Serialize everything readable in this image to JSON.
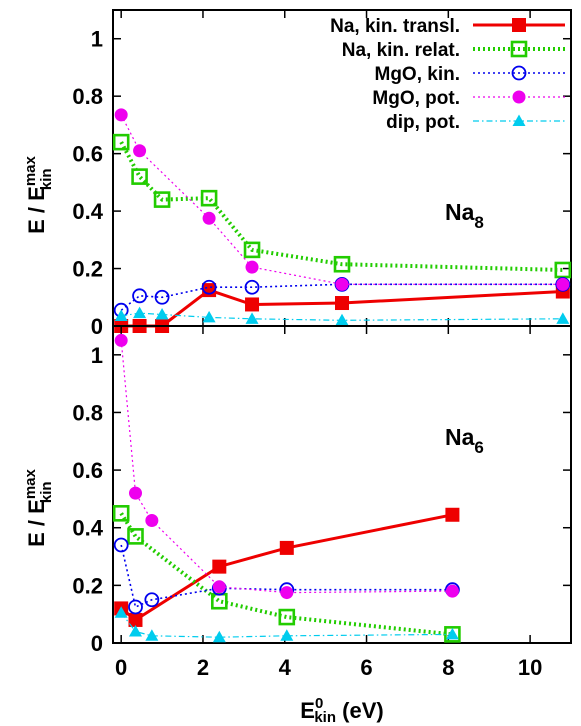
{
  "chart_data": {
    "type": "line",
    "x_axis": {
      "label": "E",
      "label_sup": "0",
      "label_sub": "kin",
      "label_rest": " (eV)",
      "range": [
        -0.2,
        11
      ],
      "ticks": [
        0,
        2,
        4,
        6,
        8,
        10
      ]
    },
    "y_axis": {
      "label": "E / E",
      "label_sup": "max",
      "label_sub": "kin"
    },
    "legend_position": "top-right",
    "legend": [
      {
        "key": "na_transl",
        "label": "Na, kin. transl."
      },
      {
        "key": "na_relat",
        "label": "Na, kin. relat."
      },
      {
        "key": "mgo_kin",
        "label": "MgO, kin."
      },
      {
        "key": "mgo_pot",
        "label": "MgO, pot."
      },
      {
        "key": "dip_pot",
        "label": "dip, pot."
      }
    ],
    "styles": {
      "na_transl": {
        "color": "#ee0000",
        "marker": "filled-square",
        "dash": "solid",
        "width": 3
      },
      "na_relat": {
        "color": "#22cc00",
        "marker": "open-square",
        "dash": "dotted",
        "width": 4
      },
      "mgo_kin": {
        "color": "#0000ee",
        "marker": "open-circle",
        "dash": "dotted",
        "width": 1.6
      },
      "mgo_pot": {
        "color": "#ee00ee",
        "marker": "filled-circle",
        "dash": "dotted",
        "width": 1.2
      },
      "dip_pot": {
        "color": "#00ccee",
        "marker": "filled-triangle",
        "dash": "dashdot",
        "width": 1.2
      }
    },
    "panels": [
      {
        "label": "Na",
        "label_sub": "8",
        "y_range": [
          0,
          1.1
        ],
        "y_ticks": [
          "0",
          "0.2",
          "0.4",
          "0.6",
          "0.8",
          "1"
        ],
        "series": {
          "na_transl": [
            [
              0,
              0.0
            ],
            [
              0.45,
              0.0
            ],
            [
              1.0,
              0.0
            ],
            [
              2.15,
              0.125
            ],
            [
              3.2,
              0.075
            ],
            [
              5.4,
              0.08
            ],
            [
              10.8,
              0.12
            ]
          ],
          "na_relat": [
            [
              0,
              0.64
            ],
            [
              0.45,
              0.52
            ],
            [
              1.0,
              0.44
            ],
            [
              2.15,
              0.445
            ],
            [
              3.2,
              0.265
            ],
            [
              5.4,
              0.215
            ],
            [
              10.8,
              0.195
            ]
          ],
          "mgo_kin": [
            [
              0,
              0.055
            ],
            [
              0.45,
              0.105
            ],
            [
              1.0,
              0.1
            ],
            [
              2.15,
              0.135
            ],
            [
              3.2,
              0.135
            ],
            [
              5.4,
              0.145
            ],
            [
              10.8,
              0.145
            ]
          ],
          "mgo_pot": [
            [
              0,
              0.735
            ],
            [
              0.45,
              0.61
            ],
            [
              2.15,
              0.375
            ],
            [
              3.2,
              0.205
            ],
            [
              5.4,
              0.145
            ],
            [
              10.8,
              0.145
            ]
          ],
          "dip_pot": [
            [
              0,
              0.035
            ],
            [
              0.45,
              0.045
            ],
            [
              1.0,
              0.04
            ],
            [
              2.15,
              0.03
            ],
            [
              3.2,
              0.025
            ],
            [
              5.4,
              0.02
            ],
            [
              10.8,
              0.025
            ]
          ]
        }
      },
      {
        "label": "Na",
        "label_sub": "6",
        "y_range": [
          0,
          1.1
        ],
        "y_ticks": [
          "0",
          "0.2",
          "0.4",
          "0.6",
          "0.8",
          "1"
        ],
        "series": {
          "na_transl": [
            [
              0,
              0.12
            ],
            [
              0.35,
              0.08
            ],
            [
              2.4,
              0.265
            ],
            [
              4.05,
              0.33
            ],
            [
              8.1,
              0.445
            ]
          ],
          "na_relat": [
            [
              0,
              0.45
            ],
            [
              0.35,
              0.37
            ],
            [
              2.4,
              0.145
            ],
            [
              4.05,
              0.09
            ],
            [
              8.1,
              0.03
            ]
          ],
          "mgo_kin": [
            [
              0,
              0.34
            ],
            [
              0.35,
              0.125
            ],
            [
              0.75,
              0.15
            ],
            [
              2.4,
              0.19
            ],
            [
              4.05,
              0.185
            ],
            [
              8.1,
              0.185
            ]
          ],
          "mgo_pot": [
            [
              0,
              1.05
            ],
            [
              0.35,
              0.52
            ],
            [
              0.75,
              0.425
            ],
            [
              2.4,
              0.195
            ],
            [
              4.05,
              0.175
            ],
            [
              8.1,
              0.18
            ]
          ],
          "dip_pot": [
            [
              0,
              0.105
            ],
            [
              0.35,
              0.04
            ],
            [
              0.75,
              0.025
            ],
            [
              2.4,
              0.02
            ],
            [
              4.05,
              0.025
            ],
            [
              8.1,
              0.03
            ]
          ]
        }
      }
    ]
  }
}
